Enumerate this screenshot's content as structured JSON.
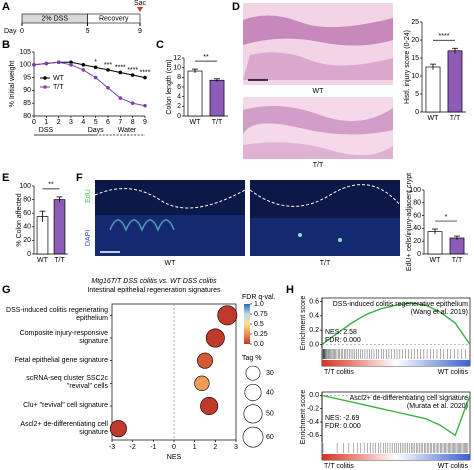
{
  "panel_labels": [
    "A",
    "B",
    "C",
    "D",
    "E",
    "F",
    "G",
    "H"
  ],
  "timeline": {
    "segments": [
      "2% DSS",
      "Recovery"
    ],
    "end_label": "Sac",
    "axis_label": "Day",
    "day_ticks": [
      0,
      5,
      9
    ]
  },
  "images": {
    "d_labels": [
      "WT",
      "T/T"
    ],
    "f_stains": [
      "EdU",
      "DAPI"
    ],
    "f_labels": [
      "WT",
      "T/T"
    ]
  },
  "chart_data": [
    {
      "type": "line",
      "ylabel": "% Initial weight",
      "xlabel": "Days",
      "phases": [
        "DSS",
        "Water"
      ],
      "x": [
        0,
        1,
        2,
        3,
        4,
        5,
        6,
        7,
        8,
        9
      ],
      "xlim": [
        0,
        9
      ],
      "xticks": [
        0,
        1,
        2,
        3,
        4,
        5,
        6,
        7,
        8,
        9
      ],
      "ylim": [
        80,
        105
      ],
      "yticks": [
        80,
        85,
        90,
        95,
        100,
        105
      ],
      "series": [
        {
          "name": "WT",
          "color": "#000000",
          "values": [
            100,
            100.5,
            101,
            101,
            100,
            99,
            98,
            97,
            96,
            95
          ]
        },
        {
          "name": "T/T",
          "color": "#7b3fa8",
          "values": [
            100,
            100.5,
            101,
            100,
            98,
            95,
            91,
            87,
            85,
            84
          ]
        }
      ],
      "sig_labels": [
        null,
        null,
        null,
        null,
        null,
        "*",
        "***",
        "****",
        "****",
        "****"
      ]
    },
    {
      "type": "bar",
      "ylabel": "Colon length (cm)",
      "categories": [
        "WT",
        "T/T"
      ],
      "values": [
        9.3,
        7.4
      ],
      "errors": [
        0.4,
        0.3
      ],
      "colors": [
        "#ffffff",
        "#8e5cb8"
      ],
      "ylim": [
        0,
        12
      ],
      "yticks": [
        0,
        2,
        4,
        6,
        8,
        10,
        12
      ],
      "sig": "**"
    },
    {
      "type": "bar",
      "ylabel": "Histl. injury score (0-24)",
      "categories": [
        "WT",
        "T/T"
      ],
      "values": [
        12.5,
        17
      ],
      "errors": [
        0.8,
        0.7
      ],
      "colors": [
        "#ffffff",
        "#8e5cb8"
      ],
      "ylim": [
        0,
        25
      ],
      "yticks": [
        0,
        5,
        10,
        15,
        20,
        25
      ],
      "sig": "****"
    },
    {
      "type": "bar",
      "ylabel": "% Colon affected",
      "categories": [
        "WT",
        "T/T"
      ],
      "values": [
        55,
        80
      ],
      "errors": [
        8,
        4
      ],
      "colors": [
        "#ffffff",
        "#8e5cb8"
      ],
      "ylim": [
        0,
        100
      ],
      "yticks": [
        0,
        20,
        40,
        60,
        80,
        100
      ],
      "sig": "**"
    },
    {
      "type": "bar",
      "ylabel": "EdU+ cells/injury-adjacent crypt",
      "categories": [
        "WT",
        "T/T"
      ],
      "values": [
        35,
        25
      ],
      "errors": [
        4,
        3
      ],
      "colors": [
        "#ffffff",
        "#8e5cb8"
      ],
      "ylim": [
        0,
        100
      ],
      "yticks": [
        0,
        20,
        40,
        60,
        80,
        100
      ],
      "sig": "*"
    },
    {
      "type": "bubble",
      "title": "Mtg16T/T DSS colitis vs. WT DSS colitis",
      "subtitle": "Intestinal epithelial regeneration signatures",
      "xlabel": "NES",
      "categories": [
        "DSS-induced colitis regenerating epithelium",
        "Composite injury-responsive signature",
        "Fetal epithelial gene signature",
        "scRNA-seq cluster SSC2c \"revival\" cells",
        "Clu+ \"revival\" cell signature",
        "Ascl2+ de-differentiating cell signature"
      ],
      "values": [
        2.58,
        2.0,
        1.5,
        1.35,
        1.7,
        -2.69
      ],
      "fdr": [
        0,
        0,
        0.1,
        0.3,
        0,
        0
      ],
      "sizes": [
        55,
        50,
        35,
        32,
        45,
        40
      ],
      "xlim": [
        -3,
        3
      ],
      "xticks": [
        -3,
        -2,
        -1,
        0,
        1,
        2,
        3
      ],
      "color_label": "FDR q-val.",
      "color_ticks": [
        {
          "value": 0,
          "label": "0.0"
        },
        0.25,
        0.5,
        0.75,
        {
          "value": 1,
          "label": "1.0"
        }
      ],
      "colorscale": [
        "#c0392b",
        "#f08a4b",
        "#fde08a",
        "#bcd8ee",
        "#2c6bb0"
      ],
      "size_label": "Tag %",
      "size_ticks": [
        30,
        40,
        50,
        60
      ]
    },
    {
      "type": "gsea",
      "title": "DSS-induced colitis regenerative epithelium",
      "subtitle": "(Wang et al. 2019)",
      "ylabel": "Enrichment score",
      "annotations": [
        "NES: 2.58",
        "FDR: 0.000"
      ],
      "end_labels": [
        "T/T colitis",
        "WT colitis"
      ],
      "color": "#3cb043",
      "x": [
        0,
        1,
        2,
        3,
        4,
        5,
        6,
        7,
        8,
        9,
        10
      ],
      "xlim": [
        0,
        10
      ],
      "values": [
        0,
        0.15,
        0.3,
        0.42,
        0.5,
        0.55,
        0.58,
        0.55,
        0.45,
        0.3,
        0
      ],
      "ylim": [
        -0.05,
        0.65
      ],
      "yticks": [
        {
          "value": 0,
          "label": "0.0"
        },
        0.2,
        0.4,
        0.6
      ]
    },
    {
      "type": "gsea",
      "title": "Ascl2+ de-differentiating cell signature",
      "subtitle": "(Murata et al. 2020)",
      "ylabel": "Enrichment score",
      "annotations": [
        "NES: -2.69",
        "FDR: 0.000"
      ],
      "end_labels": [
        "T/T colitis",
        "WT colitis"
      ],
      "color": "#3cb043",
      "x": [
        0,
        1,
        2,
        3,
        4,
        5,
        6,
        7,
        8,
        9,
        10
      ],
      "xlim": [
        0,
        10
      ],
      "values": [
        0,
        -0.05,
        -0.1,
        -0.15,
        -0.2,
        -0.25,
        -0.3,
        -0.35,
        -0.45,
        -0.6,
        0
      ],
      "ylim": [
        -0.7,
        0.05
      ],
      "yticks": [
        {
          "value": 0,
          "label": "0.0"
        },
        -0.2,
        -0.4,
        -0.6
      ]
    }
  ]
}
